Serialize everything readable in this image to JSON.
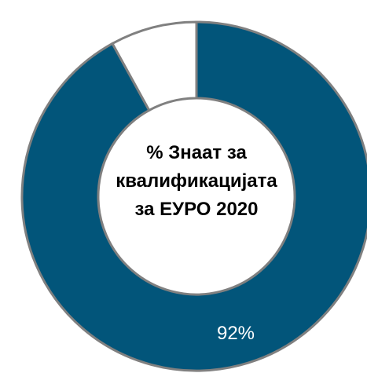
{
  "chart_data": {
    "type": "pie",
    "donut": true,
    "center_label": {
      "line1": "% Знаат за",
      "line2": "квалификацијата",
      "line3": "за ЕУРО 2020"
    },
    "slices": [
      {
        "value": 92,
        "label": "92%",
        "color": "#02557a"
      },
      {
        "value": 8,
        "label": "",
        "color": "#ffffff"
      }
    ],
    "slice_border_color": "#808080",
    "label_color": "#ffffff"
  }
}
